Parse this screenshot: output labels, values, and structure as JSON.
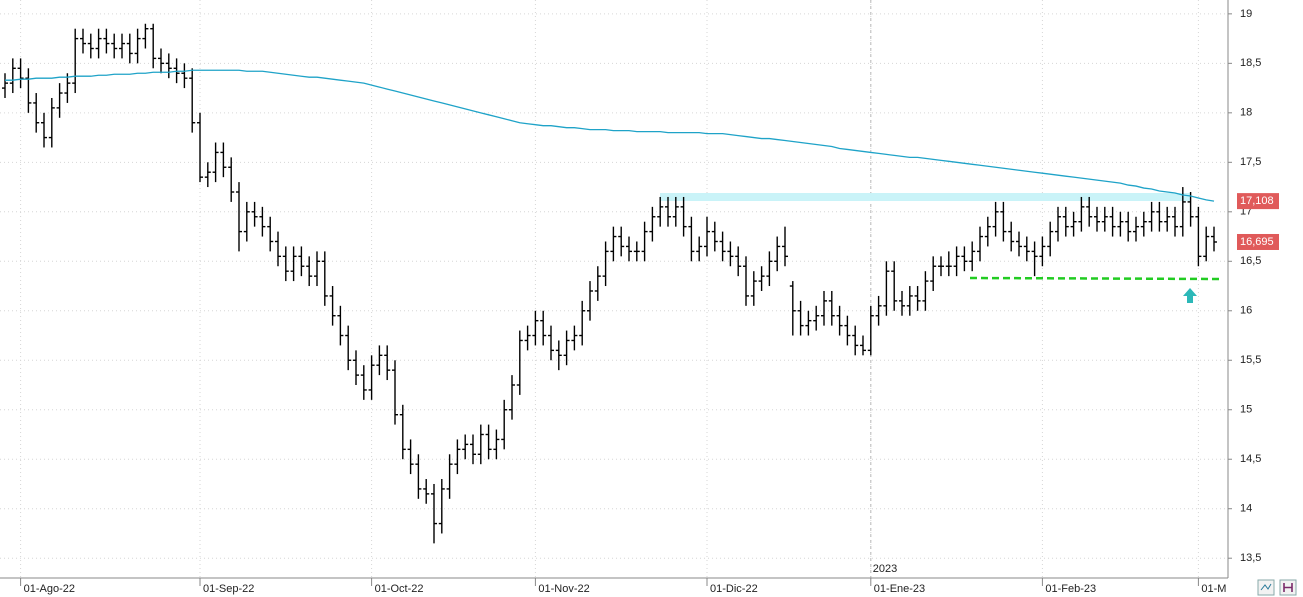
{
  "chart_data": {
    "type": "ohlc",
    "categories": [
      null,
      null,
      "01-Ago-22",
      null,
      null,
      null,
      null,
      null,
      null,
      null,
      null,
      null,
      null,
      null,
      null,
      null,
      null,
      null,
      null,
      null,
      null,
      null,
      null,
      null,
      null,
      "01-Sep-22",
      null,
      null,
      null,
      null,
      null,
      null,
      null,
      null,
      null,
      null,
      null,
      null,
      null,
      null,
      null,
      null,
      null,
      null,
      null,
      null,
      null,
      "01-Oct-22",
      null,
      null,
      null,
      null,
      null,
      null,
      null,
      null,
      null,
      null,
      null,
      null,
      null,
      null,
      null,
      null,
      null,
      null,
      null,
      null,
      "01-Nov-22",
      null,
      null,
      null,
      null,
      null,
      null,
      null,
      null,
      null,
      null,
      null,
      null,
      null,
      null,
      null,
      null,
      null,
      null,
      null,
      null,
      null,
      "01-Dic-22",
      null,
      null,
      null,
      null,
      null,
      null,
      null,
      null,
      null,
      null,
      null,
      null,
      null,
      null,
      null,
      null,
      null,
      null,
      null,
      null,
      "01-Ene-23",
      null,
      null,
      null,
      null,
      null,
      null,
      null,
      null,
      null,
      null,
      null,
      null,
      null,
      null,
      null,
      null,
      null,
      null,
      null,
      null,
      null,
      "01-Feb-23",
      null,
      null,
      null,
      null,
      null,
      null,
      null,
      null,
      null,
      null,
      null,
      null,
      null,
      null,
      null,
      null,
      null,
      null,
      null,
      "01-M",
      null,
      null
    ],
    "year_label": "2023",
    "year_index": 111,
    "open": [
      18.25,
      18.3,
      18.45,
      18.35,
      18.1,
      17.9,
      17.75,
      18.05,
      18.2,
      18.3,
      18.75,
      18.7,
      18.65,
      18.75,
      18.7,
      18.65,
      18.7,
      18.6,
      18.75,
      18.85,
      18.55,
      18.5,
      18.45,
      18.4,
      18.35,
      17.9,
      17.35,
      17.4,
      17.6,
      17.45,
      17.2,
      16.8,
      17.0,
      16.95,
      16.85,
      16.7,
      16.55,
      16.4,
      16.55,
      16.45,
      16.35,
      16.5,
      16.15,
      15.95,
      15.75,
      15.5,
      15.35,
      15.2,
      15.45,
      15.55,
      15.4,
      14.95,
      14.6,
      14.45,
      14.2,
      14.15,
      13.85,
      14.2,
      14.45,
      14.6,
      14.65,
      14.55,
      14.75,
      14.6,
      14.7,
      15.0,
      15.25,
      15.7,
      15.75,
      15.9,
      15.75,
      15.6,
      15.55,
      15.7,
      15.75,
      16.0,
      16.2,
      16.35,
      16.6,
      16.75,
      16.65,
      16.6,
      16.6,
      16.8,
      16.95,
      17.05,
      16.95,
      17.05,
      16.85,
      16.6,
      16.65,
      16.8,
      16.7,
      16.6,
      16.55,
      16.45,
      16.15,
      16.3,
      16.35,
      16.5,
      16.65,
      16.25,
      16.0,
      15.85,
      15.9,
      15.95,
      16.1,
      15.95,
      15.85,
      15.75,
      15.65,
      15.6,
      15.95,
      16.05,
      16.4,
      16.1,
      16.05,
      16.15,
      16.1,
      16.3,
      16.45,
      16.45,
      16.45,
      16.55,
      16.5,
      16.6,
      16.75,
      16.85,
      17.0,
      16.8,
      16.7,
      16.65,
      16.6,
      16.55,
      16.65,
      16.8,
      16.95,
      16.85,
      16.9,
      17.05,
      16.95,
      16.9,
      16.95,
      16.85,
      16.9,
      16.8,
      16.85,
      16.9,
      17.0,
      16.9,
      16.95,
      16.85,
      17.1,
      16.95,
      16.55,
      16.75
    ],
    "high": [
      18.4,
      18.55,
      18.55,
      18.45,
      18.2,
      18.0,
      18.15,
      18.3,
      18.4,
      18.85,
      18.85,
      18.8,
      18.85,
      18.85,
      18.8,
      18.8,
      18.8,
      18.85,
      18.9,
      18.9,
      18.65,
      18.6,
      18.55,
      18.5,
      18.45,
      18.0,
      17.5,
      17.7,
      17.7,
      17.55,
      17.3,
      17.1,
      17.1,
      17.05,
      16.95,
      16.8,
      16.65,
      16.65,
      16.65,
      16.55,
      16.6,
      16.6,
      16.25,
      16.05,
      15.85,
      15.6,
      15.45,
      15.55,
      15.65,
      15.65,
      15.5,
      15.05,
      14.7,
      14.55,
      14.3,
      14.25,
      14.3,
      14.55,
      14.7,
      14.75,
      14.75,
      14.85,
      14.85,
      14.8,
      15.1,
      15.35,
      15.8,
      15.85,
      16.0,
      16.0,
      15.85,
      15.7,
      15.8,
      15.85,
      16.1,
      16.3,
      16.45,
      16.7,
      16.85,
      16.85,
      16.75,
      16.7,
      16.9,
      17.05,
      17.15,
      17.15,
      17.15,
      17.15,
      16.95,
      16.75,
      16.95,
      16.9,
      16.8,
      16.7,
      16.65,
      16.55,
      16.4,
      16.45,
      16.6,
      16.75,
      16.85,
      16.3,
      16.1,
      16.0,
      16.05,
      16.2,
      16.2,
      16.05,
      15.95,
      15.85,
      15.75,
      16.05,
      16.15,
      16.5,
      16.5,
      16.2,
      16.25,
      16.25,
      16.4,
      16.55,
      16.55,
      16.6,
      16.65,
      16.65,
      16.7,
      16.85,
      16.95,
      17.1,
      17.1,
      16.9,
      16.8,
      16.75,
      16.7,
      16.75,
      16.9,
      17.05,
      17.05,
      17.0,
      17.15,
      17.15,
      17.05,
      17.05,
      17.05,
      17.0,
      17.0,
      16.95,
      17.0,
      17.1,
      17.1,
      17.05,
      17.05,
      17.25,
      17.2,
      17.05,
      16.85,
      16.85
    ],
    "low": [
      18.15,
      18.2,
      18.25,
      18.0,
      17.8,
      17.65,
      17.65,
      17.95,
      18.1,
      18.2,
      18.6,
      18.55,
      18.55,
      18.6,
      18.55,
      18.55,
      18.5,
      18.5,
      18.65,
      18.45,
      18.4,
      18.35,
      18.3,
      18.25,
      17.8,
      17.3,
      17.25,
      17.3,
      17.35,
      17.1,
      16.6,
      16.7,
      16.85,
      16.75,
      16.6,
      16.45,
      16.3,
      16.3,
      16.35,
      16.25,
      16.25,
      16.05,
      15.85,
      15.65,
      15.4,
      15.25,
      15.1,
      15.1,
      15.35,
      15.3,
      14.85,
      14.5,
      14.35,
      14.1,
      14.05,
      13.65,
      13.75,
      14.1,
      14.35,
      14.5,
      14.45,
      14.45,
      14.5,
      14.5,
      14.6,
      14.9,
      15.15,
      15.6,
      15.65,
      15.65,
      15.5,
      15.4,
      15.45,
      15.6,
      15.65,
      15.9,
      16.1,
      16.25,
      16.5,
      16.55,
      16.5,
      16.5,
      16.5,
      16.7,
      16.85,
      16.85,
      16.85,
      16.75,
      16.5,
      16.5,
      16.55,
      16.6,
      16.5,
      16.45,
      16.35,
      16.05,
      16.05,
      16.2,
      16.25,
      16.4,
      16.45,
      15.75,
      15.75,
      15.75,
      15.8,
      15.85,
      15.85,
      15.75,
      15.65,
      15.55,
      15.55,
      15.55,
      15.85,
      15.95,
      16.0,
      15.95,
      15.95,
      16.0,
      16.0,
      16.2,
      16.35,
      16.35,
      16.35,
      16.4,
      16.4,
      16.5,
      16.65,
      16.75,
      16.7,
      16.6,
      16.55,
      16.5,
      16.35,
      16.45,
      16.55,
      16.7,
      16.75,
      16.75,
      16.8,
      16.85,
      16.8,
      16.8,
      16.75,
      16.75,
      16.7,
      16.7,
      16.75,
      16.8,
      16.8,
      16.8,
      16.75,
      16.75,
      16.85,
      16.45,
      16.5,
      16.6
    ],
    "close": [
      18.3,
      18.45,
      18.35,
      18.1,
      17.9,
      17.75,
      18.05,
      18.2,
      18.3,
      18.75,
      18.7,
      18.65,
      18.75,
      18.7,
      18.65,
      18.7,
      18.6,
      18.75,
      18.85,
      18.55,
      18.5,
      18.45,
      18.4,
      18.35,
      17.9,
      17.35,
      17.4,
      17.6,
      17.45,
      17.2,
      16.8,
      17.0,
      16.95,
      16.85,
      16.7,
      16.55,
      16.4,
      16.55,
      16.45,
      16.35,
      16.5,
      16.15,
      15.95,
      15.75,
      15.5,
      15.35,
      15.2,
      15.45,
      15.55,
      15.4,
      14.95,
      14.6,
      14.45,
      14.2,
      14.15,
      13.85,
      14.2,
      14.45,
      14.6,
      14.65,
      14.55,
      14.75,
      14.6,
      14.7,
      15.0,
      15.25,
      15.7,
      15.75,
      15.9,
      15.75,
      15.6,
      15.55,
      15.7,
      15.75,
      16.0,
      16.2,
      16.35,
      16.6,
      16.75,
      16.65,
      16.6,
      16.6,
      16.8,
      16.95,
      17.05,
      16.95,
      17.05,
      16.85,
      16.6,
      16.65,
      16.8,
      16.7,
      16.6,
      16.55,
      16.45,
      16.15,
      16.3,
      16.35,
      16.5,
      16.65,
      16.55,
      16.0,
      15.85,
      15.9,
      15.95,
      16.1,
      15.95,
      15.85,
      15.75,
      15.65,
      15.6,
      15.95,
      16.05,
      16.4,
      16.1,
      16.05,
      16.15,
      16.1,
      16.3,
      16.45,
      16.45,
      16.45,
      16.55,
      16.5,
      16.6,
      16.75,
      16.85,
      17.0,
      16.8,
      16.7,
      16.65,
      16.6,
      16.55,
      16.65,
      16.8,
      16.95,
      16.85,
      16.9,
      17.05,
      16.95,
      16.9,
      16.95,
      16.85,
      16.9,
      16.8,
      16.85,
      16.9,
      17.0,
      16.9,
      16.95,
      16.85,
      17.1,
      16.95,
      16.55,
      16.75,
      16.695
    ],
    "bar_color": "#000000",
    "ma": {
      "color": "#1fa3c8",
      "values": [
        18.33,
        18.33,
        18.34,
        18.34,
        18.35,
        18.35,
        18.35,
        18.36,
        18.36,
        18.37,
        18.37,
        18.37,
        18.38,
        18.38,
        18.39,
        18.39,
        18.39,
        18.4,
        18.4,
        18.41,
        18.41,
        18.41,
        18.42,
        18.42,
        18.43,
        18.43,
        18.43,
        18.43,
        18.43,
        18.43,
        18.43,
        18.42,
        18.42,
        18.42,
        18.41,
        18.4,
        18.39,
        18.38,
        18.37,
        18.36,
        18.36,
        18.35,
        18.34,
        18.33,
        18.32,
        18.31,
        18.3,
        18.28,
        18.26,
        18.24,
        18.22,
        18.2,
        18.18,
        18.16,
        18.14,
        18.12,
        18.1,
        18.08,
        18.06,
        18.04,
        18.02,
        18.0,
        17.98,
        17.96,
        17.94,
        17.92,
        17.9,
        17.89,
        17.88,
        17.87,
        17.87,
        17.86,
        17.85,
        17.85,
        17.84,
        17.83,
        17.83,
        17.83,
        17.82,
        17.82,
        17.82,
        17.81,
        17.81,
        17.81,
        17.81,
        17.8,
        17.8,
        17.8,
        17.8,
        17.8,
        17.79,
        17.79,
        17.79,
        17.78,
        17.77,
        17.76,
        17.75,
        17.74,
        17.74,
        17.73,
        17.72,
        17.71,
        17.7,
        17.69,
        17.68,
        17.67,
        17.66,
        17.64,
        17.63,
        17.62,
        17.61,
        17.6,
        17.59,
        17.58,
        17.57,
        17.56,
        17.55,
        17.55,
        17.54,
        17.53,
        17.52,
        17.51,
        17.5,
        17.49,
        17.48,
        17.47,
        17.46,
        17.45,
        17.44,
        17.43,
        17.42,
        17.41,
        17.4,
        17.39,
        17.38,
        17.37,
        17.36,
        17.35,
        17.34,
        17.33,
        17.32,
        17.31,
        17.3,
        17.29,
        17.27,
        17.26,
        17.24,
        17.23,
        17.21,
        17.2,
        17.19,
        17.17,
        17.16,
        17.14,
        17.12,
        17.108
      ]
    },
    "price_labels": [
      {
        "value": 17.108,
        "label": "17,108"
      },
      {
        "value": 16.695,
        "label": "16,695"
      }
    ],
    "price_label_color": "#e05a5a",
    "ylim": [
      13.3,
      19.14
    ],
    "yticks": [
      {
        "value": 13.5,
        "label": "13,5"
      },
      14,
      {
        "value": 14.5,
        "label": "14,5"
      },
      15,
      {
        "value": 15.5,
        "label": "15,5"
      },
      16,
      {
        "value": 16.5,
        "label": "16,5"
      },
      17,
      {
        "value": 17.5,
        "label": "17,5"
      },
      18,
      {
        "value": 18.5,
        "label": "18,5"
      },
      19
    ],
    "grid": true
  }
}
